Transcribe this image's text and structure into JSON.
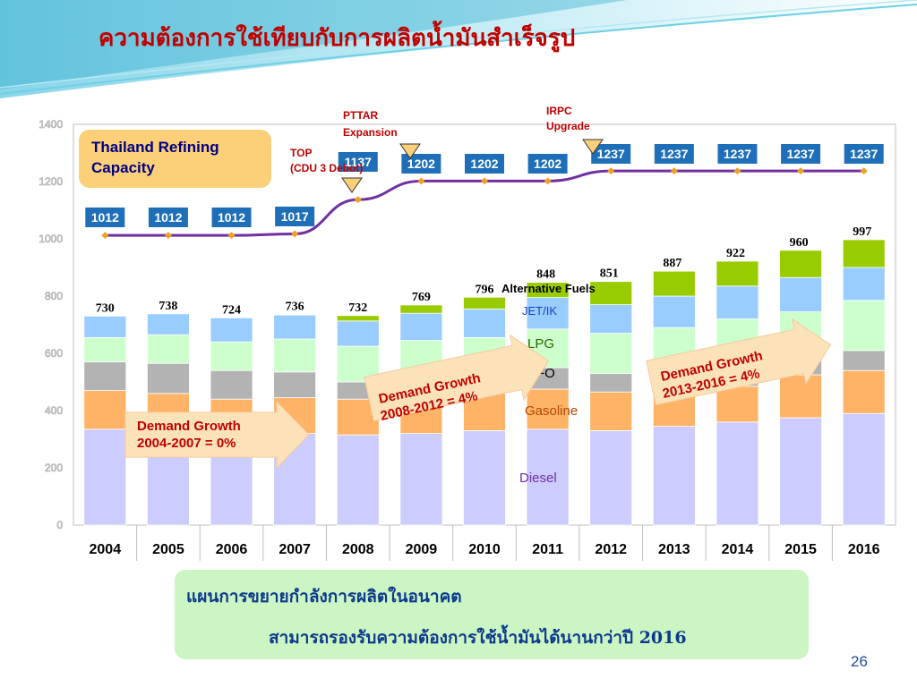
{
  "title": "ความต้องการใช้เทียบกับการผลิตน้ำมันสำเร็จรูป",
  "capacity_box": {
    "line1": "Thailand Refining",
    "line2": "Capacity"
  },
  "bottom_box": {
    "line1": "แผนการขยายกำลังการผลิตในอนาคต",
    "line2": "สามารถรองรับความต้องการใช้น้ำมันได้นานกว่าปี 2016"
  },
  "page_number": "26",
  "colors": {
    "diesel": "#ccccff",
    "gasoline": "#ffb366",
    "fo": "#b3b3b3",
    "lpg": "#ccffcc",
    "jet": "#99ccff",
    "alt": "#99cc00",
    "capacity_line": "#7030a0",
    "capacity_marker": "#f0a020",
    "capacity_label_bg": "#1f6fb8",
    "title": "#c00000",
    "annotation_red": "#c00000",
    "demand_text": "#c00000"
  },
  "chart_data": {
    "type": "bar",
    "stacked": true,
    "categories": [
      "2004",
      "2005",
      "2006",
      "2007",
      "2008",
      "2009",
      "2010",
      "2011",
      "2012",
      "2013",
      "2014",
      "2015",
      "2016"
    ],
    "ylim": [
      0,
      1400
    ],
    "yticks": [
      "0",
      "200",
      "400",
      "600",
      "800",
      "1000",
      "1200",
      "1400"
    ],
    "grid": false,
    "series": [
      {
        "name": "Diesel",
        "values": [
          335,
          330,
          325,
          320,
          315,
          320,
          330,
          335,
          330,
          345,
          360,
          375,
          390
        ]
      },
      {
        "name": "Gasoline",
        "values": [
          135,
          130,
          115,
          125,
          125,
          130,
          130,
          140,
          135,
          110,
          125,
          150,
          150
        ]
      },
      {
        "name": "FO",
        "values": [
          100,
          105,
          100,
          90,
          60,
          65,
          65,
          75,
          65,
          50,
          45,
          55,
          70
        ]
      },
      {
        "name": "LPG",
        "values": [
          85,
          100,
          100,
          115,
          125,
          130,
          130,
          135,
          140,
          185,
          190,
          165,
          175
        ]
      },
      {
        "name": "JET/IK",
        "values": [
          75,
          73,
          84,
          84,
          88,
          95,
          100,
          110,
          100,
          110,
          115,
          120,
          115
        ]
      },
      {
        "name": "Alternative Fuels",
        "values": [
          0,
          0,
          0,
          2,
          19,
          29,
          41,
          53,
          81,
          87,
          87,
          95,
          97
        ]
      }
    ],
    "totals": [
      730,
      738,
      724,
      736,
      732,
      769,
      796,
      848,
      851,
      887,
      922,
      960,
      997
    ],
    "total_labels": [
      "730",
      "738",
      "724",
      "736",
      "732",
      "769",
      "796",
      "848",
      "851",
      "887",
      "922",
      "960",
      "997"
    ],
    "capacity": {
      "values": [
        1012,
        1012,
        1012,
        1017,
        1137,
        1202,
        1202,
        1202,
        1237,
        1237,
        1237,
        1237,
        1237
      ],
      "labels": [
        "1012",
        "1012",
        "1012",
        "1017",
        "1137",
        "1202",
        "1202",
        "1202",
        "1237",
        "1237",
        "1237",
        "1237",
        "1237"
      ]
    },
    "annotations": {
      "top": {
        "line1": "TOP",
        "line2": "(CDU 3 Debot)"
      },
      "pttar": {
        "line1": "PTTAR",
        "line2": "Expansion"
      },
      "irpc": {
        "line1": "IRPC",
        "line2": "Upgrade"
      },
      "dg1": {
        "line1": "Demand Growth",
        "line2": "2004-2007 = 0%"
      },
      "dg2": {
        "line1": "Demand Growth",
        "line2": "2008-2012 = 4%"
      },
      "dg3": {
        "line1": "Demand Growth",
        "line2": "2013-2016 = 4%"
      }
    }
  }
}
